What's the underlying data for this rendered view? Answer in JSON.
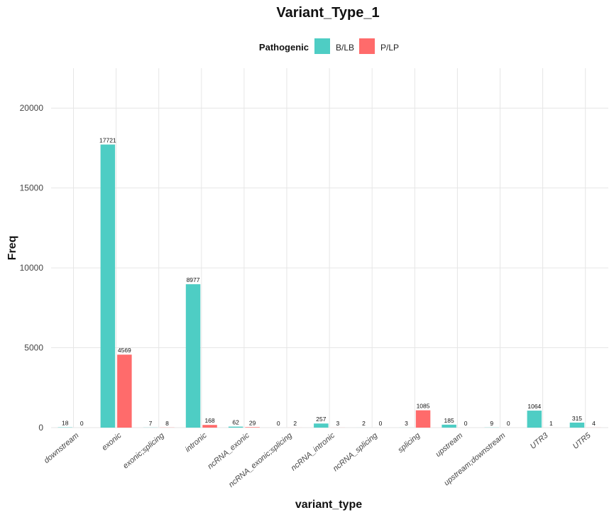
{
  "chart_data": {
    "type": "bar",
    "title": "Variant_Type_1",
    "xlabel": "variant_type",
    "ylabel": "Freq",
    "ylim": [
      0,
      22500
    ],
    "yticks": [
      0,
      5000,
      10000,
      15000,
      20000
    ],
    "grid": true,
    "legend": {
      "title": "Pathogenic",
      "placement": "top"
    },
    "categories": [
      "downstream",
      "exonic",
      "exonic;splicing",
      "intronic",
      "ncRNA_exonic",
      "ncRNA_exonic;splicing",
      "ncRNA_intronic",
      "ncRNA_splicing",
      "splicing",
      "upstream",
      "upstream;downstream",
      "UTR3",
      "UTR5"
    ],
    "series": [
      {
        "name": "B/LB",
        "color": "#4ECDC4",
        "values": [
          18,
          17721,
          7,
          8977,
          62,
          0,
          257,
          2,
          3,
          185,
          9,
          1064,
          315
        ]
      },
      {
        "name": "P/LP",
        "color": "#FF6B6B",
        "values": [
          0,
          4569,
          8,
          168,
          29,
          2,
          3,
          0,
          1085,
          0,
          0,
          1,
          4
        ]
      }
    ]
  }
}
